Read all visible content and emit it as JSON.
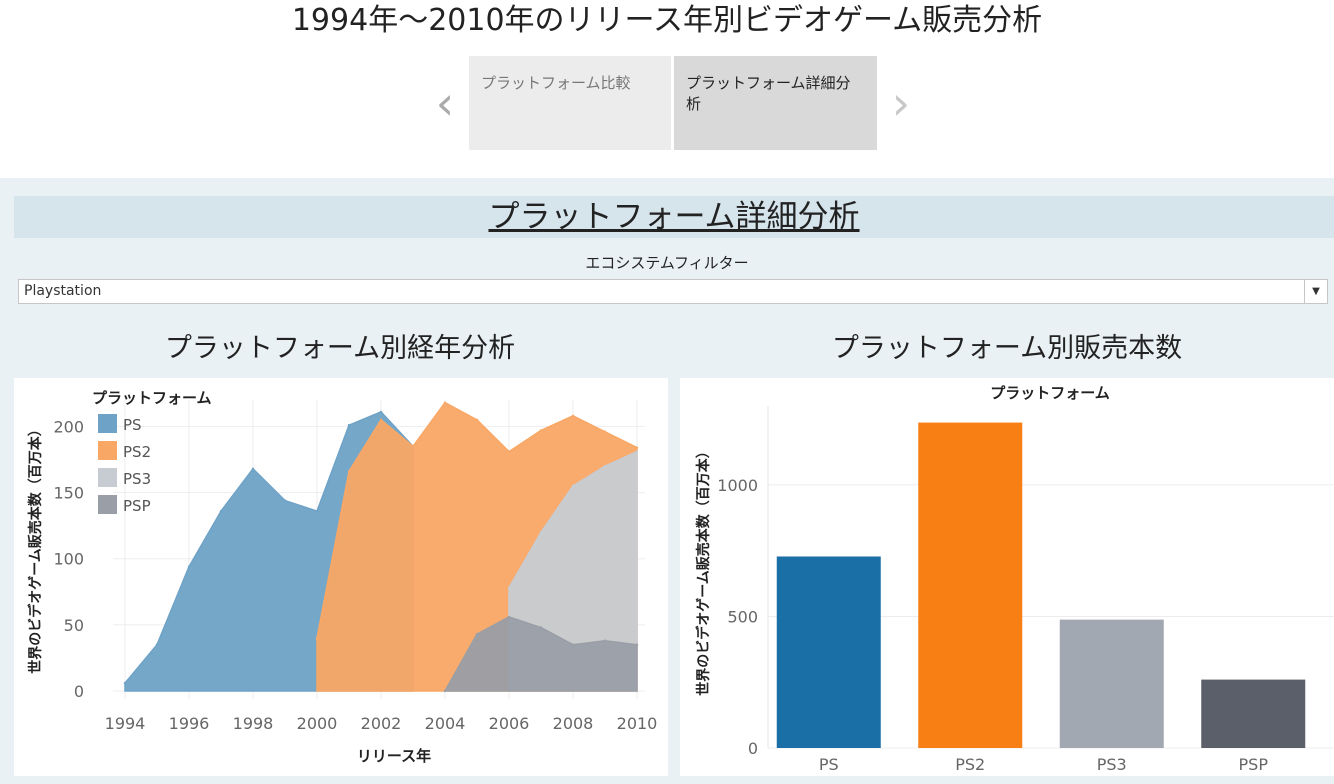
{
  "page": {
    "title": "1994年～2010年のリリース年別ビデオゲーム販売分析"
  },
  "story": {
    "prev_icon": "chevron-left-icon",
    "next_icon": "chevron-right-icon",
    "points": [
      {
        "label": "プラットフォーム比較",
        "selected": false
      },
      {
        "label": "プラットフォーム詳細分析",
        "selected": true
      }
    ]
  },
  "dashboard": {
    "header": "プラットフォーム詳細分析",
    "filter": {
      "label": "エコシステムフィルター",
      "value": "Playstation",
      "dropdown_icon": "triangle-down-icon"
    }
  },
  "colors": {
    "PS": "#6ea2c6",
    "PS2": "#f8a765",
    "PS3": "#c7ccd3",
    "PSP": "#9a9ea6",
    "bar_PS": "#1a6fa6",
    "bar_PS2": "#f77f13",
    "bar_PS3": "#a2a8b2",
    "bar_PSP": "#5a5f69"
  },
  "chart_data": [
    {
      "type": "area",
      "title": "プラットフォーム別経年分析",
      "xlabel": "リリース年",
      "ylabel": "世界のビデオゲーム販売本数（百万本）",
      "legend_title": "プラットフォーム",
      "legend_position": "top-left",
      "grid": true,
      "xlim": [
        1994,
        2010
      ],
      "ylim": [
        0,
        220
      ],
      "x_ticks": [
        1994,
        1996,
        1998,
        2000,
        2002,
        2004,
        2006,
        2008,
        2010
      ],
      "y_ticks": [
        0,
        50,
        100,
        150,
        200
      ],
      "x": [
        1994,
        1995,
        1996,
        1997,
        1998,
        1999,
        2000,
        2001,
        2002,
        2003,
        2004,
        2005,
        2006,
        2007,
        2008,
        2009,
        2010
      ],
      "series": [
        {
          "name": "PS",
          "values": [
            6,
            35,
            94,
            136,
            168,
            144,
            136,
            201,
            211,
            185,
            null,
            null,
            null,
            null,
            null,
            null,
            null
          ]
        },
        {
          "name": "PS2",
          "values": [
            null,
            null,
            null,
            null,
            null,
            null,
            40,
            166,
            205,
            185,
            218,
            205,
            181,
            197,
            208,
            196,
            184
          ]
        },
        {
          "name": "PS3",
          "values": [
            null,
            null,
            null,
            null,
            null,
            null,
            null,
            null,
            null,
            null,
            null,
            null,
            78,
            120,
            155,
            170,
            181
          ]
        },
        {
          "name": "PSP",
          "values": [
            null,
            null,
            null,
            null,
            null,
            null,
            null,
            null,
            null,
            null,
            0,
            43,
            56,
            48,
            35,
            38,
            35
          ]
        }
      ]
    },
    {
      "type": "bar",
      "title": "プラットフォーム別販売本数",
      "column_header": "プラットフォーム",
      "ylabel": "世界のビデオゲーム販売本数（百万本）",
      "grid": true,
      "ylim": [
        0,
        1300
      ],
      "y_ticks": [
        0,
        500,
        1000
      ],
      "categories": [
        "PS",
        "PS2",
        "PS3",
        "PSP"
      ],
      "values": [
        728,
        1237,
        488,
        260
      ]
    }
  ]
}
